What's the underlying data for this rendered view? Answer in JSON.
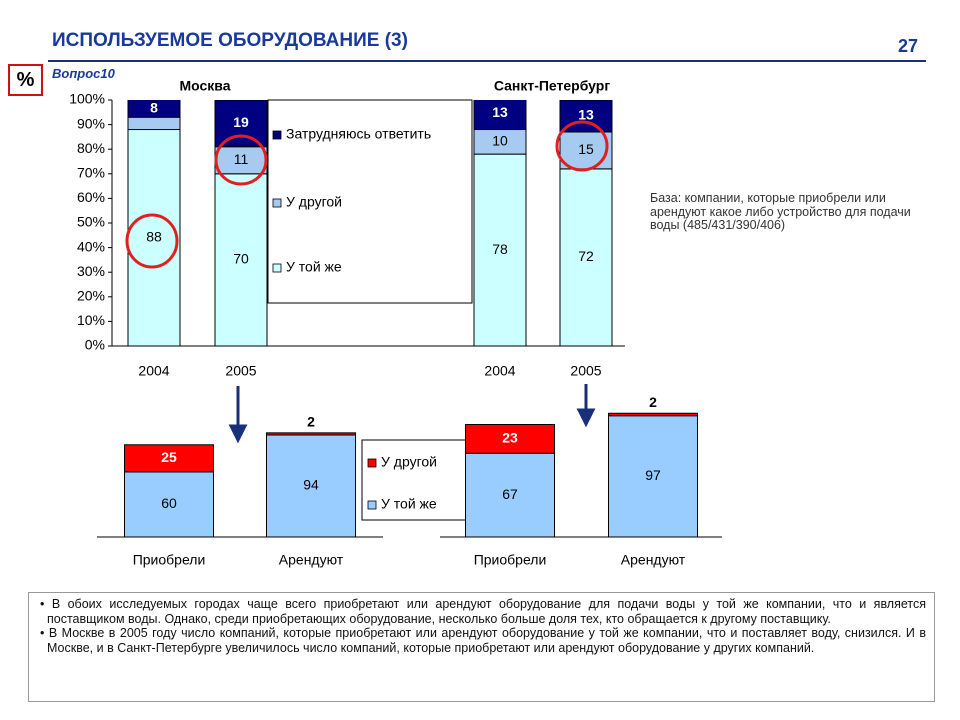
{
  "header": {
    "title": "ИСПОЛЬЗУЕМОЕ ОБОРУДОВАНИЕ (3)",
    "page_number": "27",
    "unit": "%",
    "question": "Вопрос10"
  },
  "base_note": "База: компании, которые приобрели или арендуют какое либо устройство для подачи воды (485/431/390/406)",
  "bullets": [
    "В обоих исследуемых городах чаще всего приобретают или арендуют оборудование для подачи воды у той же компании, что и является поставщиком воды. Однако, среди приобретающих оборудование, несколько больше доля тех, кто обращается к другому поставщику.",
    "В Москве в 2005 году число компаний, которые приобретают или арендуют оборудование у той же компании, что и поставляет воду, снизился.  И в Москве, и в Санкт-Петербурге увеличилось число компаний, которые приобретают или арендуют оборудование у других компаний."
  ],
  "chart_data": [
    {
      "type": "stacked_bar",
      "groups": [
        "Москва",
        "Санкт-Петербург"
      ],
      "categories": [
        "2004",
        "2005",
        "2004",
        "2005"
      ],
      "series": [
        {
          "name": "У той же",
          "color": "#ccffff",
          "values": [
            88,
            70,
            78,
            72
          ]
        },
        {
          "name": "У другой",
          "color": "#a6caf0",
          "values": [
            5,
            11,
            10,
            15
          ]
        },
        {
          "name": "Затрудняюсь ответить",
          "color": "#000080",
          "values": [
            8,
            19,
            13,
            13
          ]
        }
      ],
      "ylim": [
        0,
        100
      ],
      "yticks": [
        {
          "value": 0,
          "label": "0%"
        },
        {
          "value": 10,
          "label": "10%"
        },
        {
          "value": 20,
          "label": "20%"
        },
        {
          "value": 30,
          "label": "30%"
        },
        {
          "value": 40,
          "label": "40%"
        },
        {
          "value": 50,
          "label": "50%"
        },
        {
          "value": 60,
          "label": "60%"
        },
        {
          "value": 70,
          "label": "70%"
        },
        {
          "value": 80,
          "label": "80%"
        },
        {
          "value": 90,
          "label": "90%"
        },
        {
          "value": 100,
          "label": "100%"
        }
      ],
      "legend": true
    },
    {
      "type": "stacked_bar",
      "categories": [
        "Приобрели",
        "Арендуют"
      ],
      "series": [
        {
          "name": "У той же",
          "color": "#99ccff",
          "values": [
            60,
            94
          ]
        },
        {
          "name": "У другой",
          "color": "#ff0000",
          "values": [
            25,
            2
          ]
        }
      ],
      "ylim": [
        0,
        100
      ],
      "legend": true
    },
    {
      "type": "stacked_bar",
      "categories": [
        "Приобрели",
        "Арендуют"
      ],
      "series": [
        {
          "name": "У той же",
          "color": "#99ccff",
          "values": [
            67,
            97
          ]
        },
        {
          "name": "У другой",
          "color": "#ff0000",
          "values": [
            23,
            2
          ]
        }
      ],
      "ylim": [
        0,
        100
      ],
      "legend": false
    }
  ]
}
